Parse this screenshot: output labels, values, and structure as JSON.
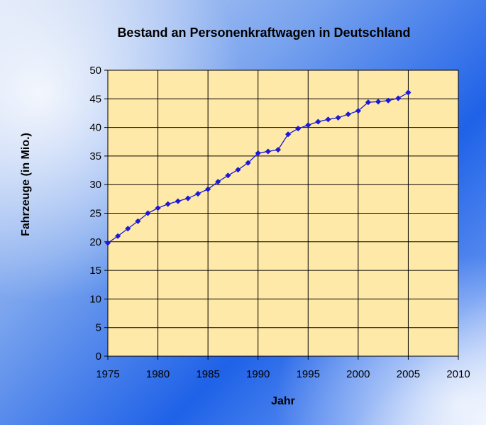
{
  "chart_data": {
    "type": "line",
    "title": "Bestand an Personenkraftwagen in Deutschland",
    "xlabel": "Jahr",
    "ylabel": "Fahrzeuge (in Mio.)",
    "xlim": [
      1975,
      2010
    ],
    "ylim": [
      0,
      50
    ],
    "xticks": [
      1975,
      1980,
      1985,
      1990,
      1995,
      2000,
      2005,
      2010
    ],
    "yticks": [
      0,
      5,
      10,
      15,
      20,
      25,
      30,
      35,
      40,
      45,
      50
    ],
    "grid": true,
    "legend": "none",
    "colors": {
      "line": "#1a1ad6",
      "plot_bg": "#ffe9a8",
      "grid": "#000000"
    },
    "series": [
      {
        "x": [
          1975,
          1976,
          1977,
          1978,
          1979,
          1980,
          1981,
          1982,
          1983,
          1984,
          1985,
          1986,
          1987,
          1988,
          1989,
          1990,
          1991,
          1992,
          1993,
          1994,
          1995,
          1996,
          1997,
          1998,
          1999,
          2000,
          2001,
          2002,
          2003,
          2004,
          2005
        ],
        "y": [
          19.8,
          21.0,
          22.3,
          23.6,
          25.0,
          25.9,
          26.6,
          27.1,
          27.6,
          28.4,
          29.2,
          30.5,
          31.6,
          32.6,
          33.8,
          35.5,
          35.8,
          36.1,
          38.8,
          39.8,
          40.4,
          41.0,
          41.4,
          41.7,
          42.3,
          42.9,
          44.4,
          44.5,
          44.7,
          45.1,
          46.1
        ]
      }
    ]
  }
}
